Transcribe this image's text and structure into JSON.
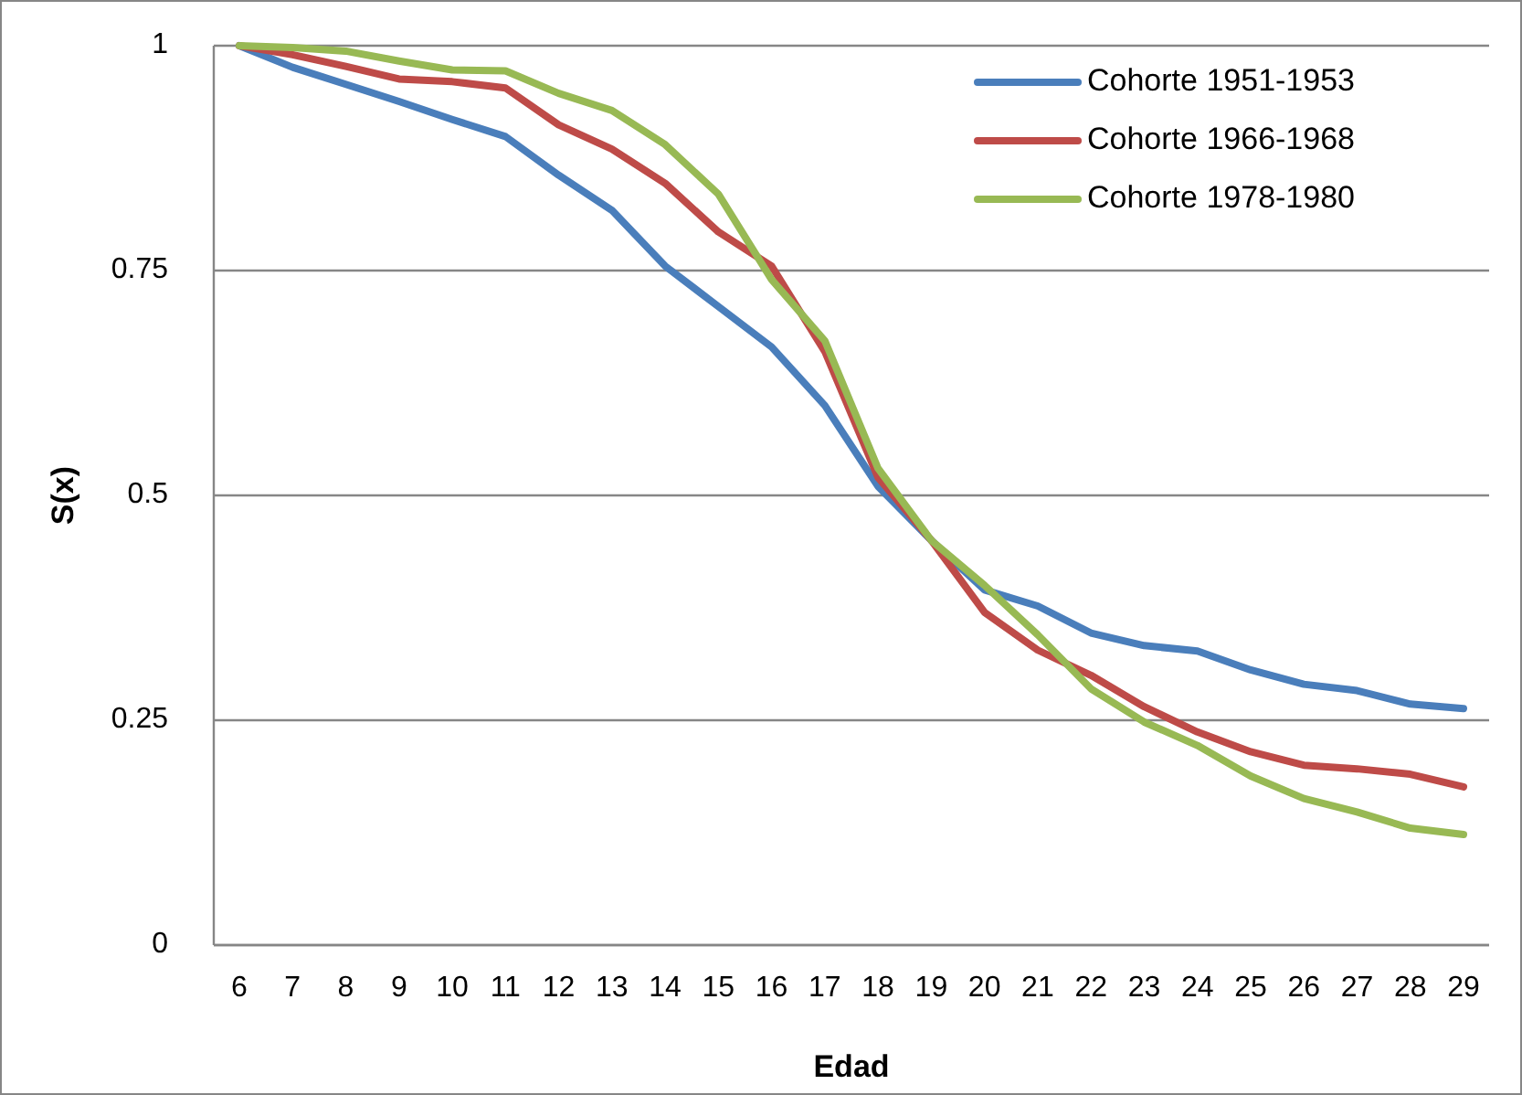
{
  "chart_data": {
    "type": "line",
    "xlabel": "Edad",
    "ylabel": "S(x)",
    "categories": [
      "6",
      "7",
      "8",
      "9",
      "10",
      "11",
      "12",
      "13",
      "14",
      "15",
      "16",
      "17",
      "18",
      "19",
      "20",
      "21",
      "22",
      "23",
      "24",
      "25",
      "26",
      "27",
      "28",
      "29"
    ],
    "series": [
      {
        "name": "Cohorte 1951-1953",
        "color": "#4a7ebb",
        "values": [
          1,
          0.976,
          0.957,
          0.938,
          0.918,
          0.899,
          0.856,
          0.817,
          0.755,
          0.71,
          0.665,
          0.6,
          0.51,
          0.45,
          0.395,
          0.377,
          0.347,
          0.333,
          0.327,
          0.306,
          0.29,
          0.283,
          0.268,
          0.263
        ]
      },
      {
        "name": "Cohorte 1966-1968",
        "color": "#be4b48",
        "values": [
          1,
          0.99,
          0.977,
          0.963,
          0.96,
          0.953,
          0.912,
          0.885,
          0.847,
          0.793,
          0.755,
          0.66,
          0.52,
          0.45,
          0.37,
          0.328,
          0.3,
          0.265,
          0.237,
          0.215,
          0.2,
          0.196,
          0.19,
          0.176
        ]
      },
      {
        "name": "Cohorte 1978-1980",
        "color": "#98b954",
        "values": [
          1,
          0.998,
          0.994,
          0.983,
          0.973,
          0.972,
          0.947,
          0.928,
          0.89,
          0.835,
          0.74,
          0.672,
          0.53,
          0.45,
          0.4,
          0.345,
          0.285,
          0.248,
          0.222,
          0.188,
          0.163,
          0.148,
          0.13,
          0.123
        ]
      }
    ],
    "ylim": [
      0,
      1
    ],
    "yticks": [
      {
        "value": 0,
        "label": "0"
      },
      {
        "value": 0.25,
        "label": "0.25"
      },
      {
        "value": 0.5,
        "label": "0.5"
      },
      {
        "value": 0.75,
        "label": "0.75"
      },
      {
        "value": 1,
        "label": "1"
      }
    ],
    "grid": "y",
    "legend": "top right",
    "marker": "none",
    "line_style": "solid"
  }
}
